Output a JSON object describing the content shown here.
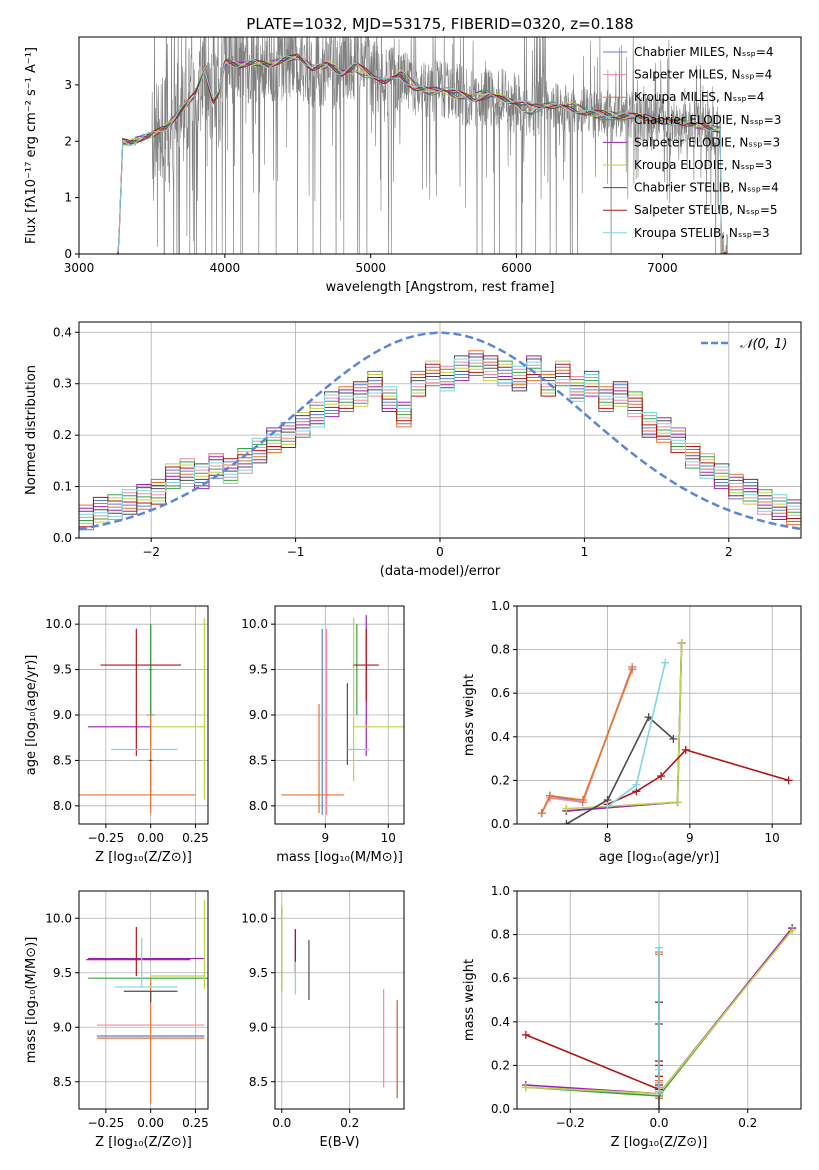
{
  "figure_title": "PLATE=1032, MJD=53175, FIBERID=0320, z=0.188",
  "colors": {
    "chabrier_miles": "#5b7fd6",
    "salpeter_miles": "#ef8aa6",
    "kroupa_miles": "#e8742c",
    "chabrier_elodie": "#3aa04a",
    "salpeter_elodie": "#9a23b5",
    "kroupa_elodie": "#c2d14b",
    "chabrier_stelib": "#4d4d4d",
    "salpeter_stelib": "#b01616",
    "kroupa_stelib": "#7fd6e3",
    "observed": "#808080",
    "gaussian": "#5b87d6"
  },
  "chart_data": [
    {
      "id": "spectrum",
      "type": "line",
      "title": "PLATE=1032, MJD=53175, FIBERID=0320, z=0.188",
      "xlabel": "wavelength [Angstrom, rest frame]",
      "ylabel": "Flux [fλ10⁻¹⁷ erg cm⁻² s⁻¹ A⁻¹]",
      "xlim": [
        3000,
        7950
      ],
      "ylim": [
        0,
        3.85
      ],
      "xticks": [
        "3000",
        "4000",
        "5000",
        "6000",
        "7000"
      ],
      "yticks": [
        "0",
        "1",
        "2",
        "3"
      ],
      "grid": false,
      "legend_position": "top-right",
      "legend": [
        "Chabrier MILES, Nₛₛₚ=4",
        "Salpeter MILES, Nₛₛₚ=4",
        "Kroupa MILES, Nₛₛₚ=4",
        "Chabrier ELODIE, Nₛₛₚ=3",
        "Salpeter ELODIE, Nₛₛₚ=3",
        "Kroupa ELODIE, Nₛₛₚ=3",
        "Chabrier STELIB, Nₛₛₚ=4",
        "Salpeter STELIB, Nₛₛₚ=5",
        "Kroupa STELIB, Nₛₛₚ=3"
      ],
      "model_continuum": {
        "x": [
          3270,
          3300,
          3350,
          3400,
          3500,
          3600,
          3700,
          3800,
          3860,
          3920,
          3960,
          4000,
          4100,
          4200,
          4300,
          4400,
          4500,
          4600,
          4700,
          4800,
          4900,
          5000,
          5100,
          5200,
          5300,
          5400,
          5500,
          5600,
          5700,
          5800,
          5900,
          6000,
          6100,
          6200,
          6300,
          6400,
          6500,
          6600,
          6700,
          6800,
          6900,
          7000,
          7100,
          7200,
          7300,
          7400
        ],
        "y": [
          0,
          2.0,
          1.97,
          2.03,
          2.12,
          2.25,
          2.55,
          2.85,
          3.28,
          2.7,
          2.85,
          3.4,
          3.35,
          3.4,
          3.35,
          3.45,
          3.5,
          3.3,
          3.35,
          3.2,
          3.35,
          3.2,
          3.05,
          3.15,
          2.95,
          2.9,
          2.95,
          2.85,
          2.75,
          2.8,
          2.75,
          2.7,
          2.6,
          2.65,
          2.6,
          2.55,
          2.5,
          2.5,
          2.45,
          2.45,
          2.42,
          2.35,
          2.35,
          2.3,
          2.25,
          2.2
        ]
      }
    },
    {
      "id": "residuals",
      "type": "line",
      "xlabel": "(data-model)/error",
      "ylabel": "Normed distribution",
      "xlim": [
        -2.5,
        2.5
      ],
      "ylim": [
        0,
        0.42
      ],
      "xticks": [
        "−2",
        "−1",
        "0",
        "1",
        "2"
      ],
      "yticks": [
        "0.0",
        "0.1",
        "0.2",
        "0.3",
        "0.4"
      ],
      "grid": true,
      "legend_position": "top-right",
      "legend": [
        "𝒩(0, 1)"
      ],
      "gaussian": {
        "mean": 0,
        "sigma": 1,
        "peak": 0.399
      },
      "histogram": {
        "bin_edges_start": -2.5,
        "bin_width": 0.1,
        "values": [
          0.04,
          0.055,
          0.06,
          0.07,
          0.08,
          0.09,
          0.12,
          0.13,
          0.12,
          0.14,
          0.13,
          0.15,
          0.17,
          0.19,
          0.2,
          0.22,
          0.24,
          0.26,
          0.27,
          0.28,
          0.3,
          0.27,
          0.24,
          0.3,
          0.32,
          0.31,
          0.33,
          0.34,
          0.33,
          0.32,
          0.31,
          0.33,
          0.3,
          0.32,
          0.29,
          0.3,
          0.27,
          0.28,
          0.26,
          0.22,
          0.21,
          0.19,
          0.16,
          0.14,
          0.12,
          0.1,
          0.09,
          0.07,
          0.06,
          0.05
        ]
      }
    },
    {
      "id": "age_vs_z",
      "type": "scatter",
      "xlabel": "Z [log₁₀(Z/Z⊙)]",
      "ylabel": "age  [log₁₀(age/yr)]",
      "xlim": [
        -0.4,
        0.32
      ],
      "ylim": [
        7.8,
        10.2
      ],
      "xticks": [
        "−0.25",
        "0.00",
        "0.25"
      ],
      "yticks": [
        "8.0",
        "8.5",
        "9.0",
        "9.5",
        "10.0"
      ],
      "grid": true,
      "series": [
        {
          "name": "Chabrier MILES",
          "x": 0.0,
          "y": 9.0,
          "xerr": [
            0.02,
            0.02
          ],
          "yerr": [
            0.9,
            1.0
          ]
        },
        {
          "name": "Salpeter MILES",
          "x": 0.0,
          "y": 9.0,
          "xerr": [
            0.02,
            0.02
          ],
          "yerr": [
            0.9,
            1.0
          ]
        },
        {
          "name": "Kroupa MILES",
          "x": 0.0,
          "y": 8.12,
          "xerr": [
            0.4,
            0.25
          ],
          "yerr": [
            0.2,
            1.0
          ]
        },
        {
          "name": "Chabrier ELODIE",
          "x": 0.0,
          "y": 9.5,
          "xerr": [
            0.01,
            0.01
          ],
          "yerr": [
            0.5,
            0.5
          ]
        },
        {
          "name": "Salpeter ELODIE",
          "x": 0.0,
          "y": 8.87,
          "xerr": [
            0.35,
            0.0
          ],
          "yerr": [
            0.0,
            0.0
          ]
        },
        {
          "name": "Kroupa ELODIE",
          "x": 0.3,
          "y": 8.87,
          "xerr": [
            0.3,
            0.0
          ],
          "yerr": [
            0.8,
            1.2
          ]
        },
        {
          "name": "Chabrier STELIB",
          "x": 0.0,
          "y": 8.5,
          "xerr": [
            0.01,
            0.01
          ],
          "yerr": [
            0.0,
            0.0
          ]
        },
        {
          "name": "Salpeter STELIB",
          "x": -0.08,
          "y": 9.55,
          "xerr": [
            0.2,
            0.25
          ],
          "yerr": [
            1.0,
            0.4
          ]
        },
        {
          "name": "Kroupa STELIB",
          "x": 0.0,
          "y": 8.62,
          "xerr": [
            0.22,
            0.15
          ],
          "yerr": [
            0.0,
            0.0
          ]
        }
      ]
    },
    {
      "id": "age_vs_mass",
      "type": "scatter",
      "xlabel": "mass [log₁₀(M/M⊙)]",
      "ylabel": "",
      "xlim": [
        8.2,
        10.25
      ],
      "ylim": [
        7.8,
        10.2
      ],
      "xticks": [
        "9",
        "10"
      ],
      "yticks": [
        "8.0",
        "8.5",
        "9.0",
        "9.5",
        "10.0"
      ],
      "grid": true,
      "series": [
        {
          "name": "Chabrier MILES",
          "x": 8.95,
          "y": 8.9,
          "xerr": [
            0.0,
            0.0
          ],
          "yerr": [
            1.0,
            1.05
          ]
        },
        {
          "name": "Salpeter MILES",
          "x": 9.02,
          "y": 8.9,
          "xerr": [
            0.0,
            0.0
          ],
          "yerr": [
            1.0,
            1.05
          ]
        },
        {
          "name": "Kroupa MILES",
          "x": 8.9,
          "y": 8.12,
          "xerr": [
            0.6,
            0.4
          ],
          "yerr": [
            0.2,
            1.0
          ]
        },
        {
          "name": "Chabrier ELODIE",
          "x": 9.5,
          "y": 9.5,
          "xerr": [
            0.0,
            0.0
          ],
          "yerr": [
            0.5,
            0.5
          ]
        },
        {
          "name": "Salpeter ELODIE",
          "x": 9.65,
          "y": 9.3,
          "xerr": [
            0.0,
            0.0
          ],
          "yerr": [
            0.75,
            0.8
          ]
        },
        {
          "name": "Kroupa ELODIE",
          "x": 9.45,
          "y": 8.87,
          "xerr": [
            0.0,
            1.0
          ],
          "yerr": [
            0.6,
            1.2
          ]
        },
        {
          "name": "Chabrier STELIB",
          "x": 9.35,
          "y": 8.9,
          "xerr": [
            0.0,
            0.0
          ],
          "yerr": [
            0.45,
            0.45
          ]
        },
        {
          "name": "Salpeter STELIB",
          "x": 9.65,
          "y": 9.55,
          "xerr": [
            0.2,
            0.2
          ],
          "yerr": [
            0.4,
            0.4
          ]
        },
        {
          "name": "Kroupa STELIB",
          "x": 9.5,
          "y": 8.62,
          "xerr": [
            0.15,
            0.2
          ],
          "yerr": [
            0.0,
            0.0
          ]
        }
      ]
    },
    {
      "id": "massweight_vs_age",
      "type": "line",
      "xlabel": "age  [log₁₀(age/yr)]",
      "ylabel": "mass weight",
      "xlim": [
        6.9,
        10.35
      ],
      "ylim": [
        0,
        1.0
      ],
      "xticks": [
        "8",
        "9",
        "10"
      ],
      "yticks": [
        "0.0",
        "0.2",
        "0.4",
        "0.6",
        "0.8",
        "1.0"
      ],
      "grid": true,
      "series": [
        {
          "name": "Chabrier MILES",
          "x": [
            7.2,
            7.3,
            7.7,
            8.3
          ],
          "y": [
            0.05,
            0.13,
            0.1,
            0.72
          ]
        },
        {
          "name": "Salpeter MILES",
          "x": [
            7.2,
            7.3,
            7.7,
            8.3
          ],
          "y": [
            0.05,
            0.12,
            0.1,
            0.72
          ]
        },
        {
          "name": "Kroupa MILES",
          "x": [
            7.2,
            7.3,
            7.7,
            8.3
          ],
          "y": [
            0.05,
            0.13,
            0.11,
            0.71
          ]
        },
        {
          "name": "Chabrier ELODIE",
          "x": [
            7.5,
            8.85,
            8.9
          ],
          "y": [
            0.06,
            0.1,
            0.83
          ]
        },
        {
          "name": "Salpeter ELODIE",
          "x": [
            7.5,
            8.85,
            8.9
          ],
          "y": [
            0.06,
            0.1,
            0.83
          ]
        },
        {
          "name": "Kroupa ELODIE",
          "x": [
            7.5,
            8.85,
            8.9
          ],
          "y": [
            0.07,
            0.1,
            0.83
          ]
        },
        {
          "name": "Chabrier STELIB",
          "x": [
            7.5,
            8.0,
            8.5,
            8.8
          ],
          "y": [
            0.0,
            0.11,
            0.49,
            0.39
          ]
        },
        {
          "name": "Salpeter STELIB",
          "x": [
            8.0,
            8.35,
            8.65,
            8.95,
            10.2
          ],
          "y": [
            0.09,
            0.15,
            0.22,
            0.34,
            0.2
          ]
        },
        {
          "name": "Kroupa STELIB",
          "x": [
            8.0,
            8.35,
            8.7
          ],
          "y": [
            0.08,
            0.18,
            0.74
          ]
        }
      ]
    },
    {
      "id": "mass_vs_z",
      "type": "scatter",
      "xlabel": "Z [log₁₀(Z/Z⊙)]",
      "ylabel": "mass [log₁₀(M/M⊙)]",
      "xlim": [
        -0.4,
        0.32
      ],
      "ylim": [
        8.25,
        10.25
      ],
      "xticks": [
        "−0.25",
        "0.00",
        "0.25"
      ],
      "yticks": [
        "8.5",
        "9.0",
        "9.5",
        "10.0"
      ],
      "grid": true,
      "series": [
        {
          "name": "Chabrier MILES",
          "x": 0.0,
          "y": 8.92,
          "xerr": [
            0.3,
            0.3
          ],
          "yerr": [
            0.0,
            0.0
          ]
        },
        {
          "name": "Salpeter MILES",
          "x": 0.0,
          "y": 9.02,
          "xerr": [
            0.3,
            0.3
          ],
          "yerr": [
            0.0,
            0.0
          ]
        },
        {
          "name": "Kroupa MILES",
          "x": 0.0,
          "y": 8.9,
          "xerr": [
            0.3,
            0.3
          ],
          "yerr": [
            0.6,
            0.55
          ]
        },
        {
          "name": "Chabrier ELODIE",
          "x": 0.0,
          "y": 9.45,
          "xerr": [
            0.35,
            0.35
          ],
          "yerr": [
            0.0,
            0.0
          ]
        },
        {
          "name": "Salpeter ELODIE",
          "x": 0.0,
          "y": 9.63,
          "xerr": [
            0.35,
            0.3
          ],
          "yerr": [
            0.0,
            0.0
          ]
        },
        {
          "name": "Kroupa ELODIE",
          "x": 0.3,
          "y": 9.47,
          "xerr": [
            0.3,
            0.0
          ],
          "yerr": [
            0.12,
            0.7
          ]
        },
        {
          "name": "Chabrier STELIB",
          "x": 0.0,
          "y": 9.33,
          "xerr": [
            0.15,
            0.15
          ],
          "yerr": [
            0.1,
            0.0
          ]
        },
        {
          "name": "Salpeter STELIB",
          "x": -0.08,
          "y": 9.62,
          "xerr": [
            0.28,
            0.3
          ],
          "yerr": [
            0.15,
            0.3
          ]
        },
        {
          "name": "Kroupa STELIB",
          "x": -0.05,
          "y": 9.37,
          "xerr": [
            0.15,
            0.2
          ],
          "yerr": [
            0.0,
            0.45
          ]
        }
      ]
    },
    {
      "id": "mass_vs_ebv",
      "type": "scatter",
      "xlabel": "E(B-V)",
      "ylabel": "",
      "xlim": [
        -0.02,
        0.36
      ],
      "ylim": [
        8.25,
        10.25
      ],
      "xticks": [
        "0.0",
        "0.2"
      ],
      "yticks": [
        "8.5",
        "9.0",
        "9.5",
        "10.0"
      ],
      "grid": true,
      "series": [
        {
          "name": "Chabrier MILES",
          "x": 0.34,
          "y": 8.8,
          "yerr": [
            0.45,
            0.45
          ]
        },
        {
          "name": "Salpeter MILES",
          "x": 0.3,
          "y": 8.9,
          "yerr": [
            0.45,
            0.45
          ]
        },
        {
          "name": "Kroupa MILES",
          "x": 0.34,
          "y": 8.75,
          "yerr": [
            0.4,
            0.5
          ]
        },
        {
          "name": "Chabrier ELODIE",
          "x": 0.0,
          "y": 9.7,
          "yerr": [
            0.35,
            0.4
          ]
        },
        {
          "name": "Salpeter ELODIE",
          "x": 0.04,
          "y": 9.7,
          "yerr": [
            0.2,
            0.2
          ]
        },
        {
          "name": "Kroupa ELODIE",
          "x": 0.0,
          "y": 9.72,
          "yerr": [
            0.4,
            0.42
          ]
        },
        {
          "name": "Chabrier STELIB",
          "x": 0.08,
          "y": 9.5,
          "yerr": [
            0.25,
            0.3
          ]
        },
        {
          "name": "Salpeter STELIB",
          "x": 0.04,
          "y": 9.7,
          "yerr": [
            0.2,
            0.2
          ]
        },
        {
          "name": "Kroupa STELIB",
          "x": 0.04,
          "y": 9.45,
          "yerr": [
            0.15,
            0.15
          ]
        }
      ]
    },
    {
      "id": "massweight_vs_z",
      "type": "line",
      "xlabel": "Z [log₁₀(Z/Z⊙)]",
      "ylabel": "mass weight",
      "xlim": [
        -0.32,
        0.32
      ],
      "ylim": [
        0,
        1.0
      ],
      "xticks": [
        "−0.2",
        "0.0",
        "0.2"
      ],
      "yticks": [
        "0.0",
        "0.2",
        "0.4",
        "0.6",
        "0.8",
        "1.0"
      ],
      "grid": true,
      "series": [
        {
          "name": "Chabrier MILES",
          "x": [
            0.0,
            0.0,
            0.0,
            0.0
          ],
          "y": [
            0.05,
            0.13,
            0.1,
            0.72
          ]
        },
        {
          "name": "Salpeter MILES",
          "x": [
            0.0,
            0.0,
            0.0,
            0.0
          ],
          "y": [
            0.05,
            0.12,
            0.1,
            0.72
          ]
        },
        {
          "name": "Kroupa MILES",
          "x": [
            0.0,
            0.0,
            0.0,
            0.0
          ],
          "y": [
            0.05,
            0.13,
            0.11,
            0.71
          ]
        },
        {
          "name": "Chabrier ELODIE",
          "x": [
            -0.3,
            0.0,
            0.3
          ],
          "y": [
            0.1,
            0.06,
            0.83
          ]
        },
        {
          "name": "Salpeter ELODIE",
          "x": [
            -0.3,
            0.0,
            0.3
          ],
          "y": [
            0.11,
            0.07,
            0.83
          ]
        },
        {
          "name": "Kroupa ELODIE",
          "x": [
            -0.3,
            0.0,
            0.3
          ],
          "y": [
            0.1,
            0.07,
            0.82
          ]
        },
        {
          "name": "Chabrier STELIB",
          "x": [
            0.0,
            0.0,
            0.0,
            0.0
          ],
          "y": [
            0.0,
            0.11,
            0.49,
            0.39
          ]
        },
        {
          "name": "Salpeter STELIB",
          "x": [
            -0.3,
            0.0,
            0.0,
            0.0,
            0.0
          ],
          "y": [
            0.34,
            0.09,
            0.15,
            0.22,
            0.2
          ]
        },
        {
          "name": "Kroupa STELIB",
          "x": [
            0.0,
            0.0,
            0.0
          ],
          "y": [
            0.08,
            0.18,
            0.74
          ]
        }
      ]
    }
  ]
}
